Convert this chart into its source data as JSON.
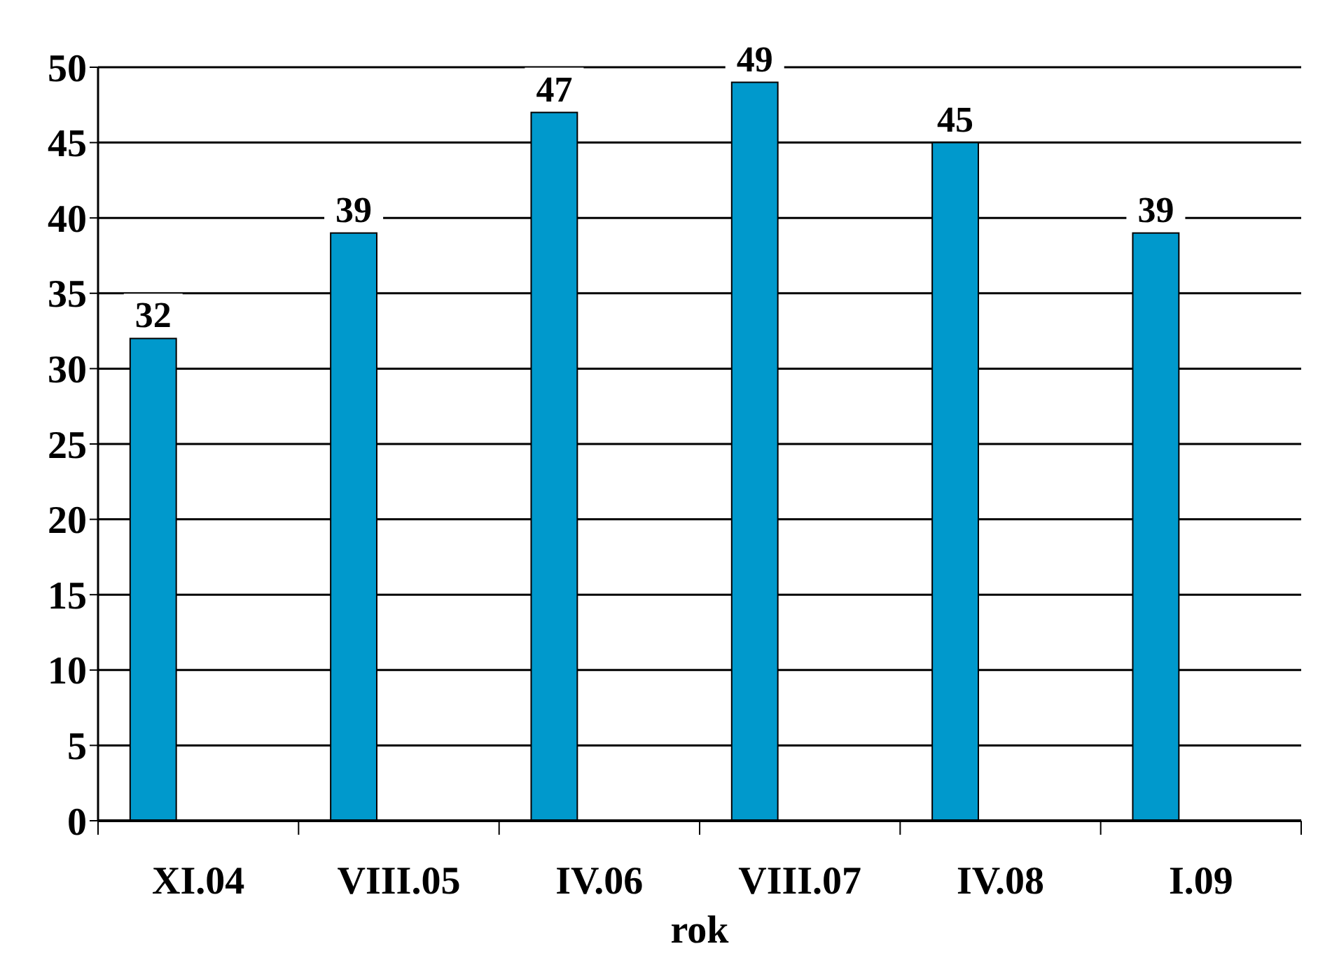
{
  "chart_data": {
    "type": "bar",
    "xlabel": "rok",
    "categories": [
      "XI.04",
      "VIII.05",
      "IV.06",
      "VIII.07",
      "IV.08",
      "I.09"
    ],
    "values": [
      32,
      39,
      47,
      49,
      45,
      39
    ],
    "color": "#0099cc",
    "ylim": [
      0,
      50
    ],
    "yticks": [
      0,
      5,
      10,
      15,
      20,
      25,
      30,
      35,
      40,
      45,
      50
    ],
    "grid": "y",
    "data_labels": true
  }
}
